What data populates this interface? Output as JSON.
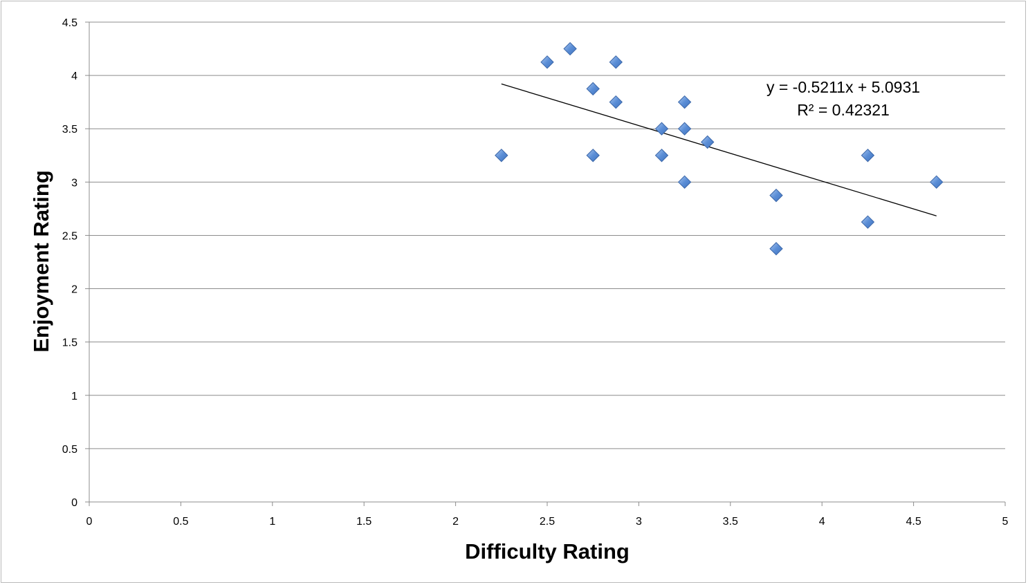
{
  "chart_data": {
    "type": "scatter",
    "title": "",
    "xlabel": "Difficulty Rating",
    "ylabel": "Enjoyment Rating",
    "xlim": [
      0,
      5
    ],
    "ylim": [
      0,
      4.5
    ],
    "xticks": [
      "0",
      "0.5",
      "1",
      "1.5",
      "2",
      "2.5",
      "3",
      "3.5",
      "4",
      "4.5",
      "5"
    ],
    "yticks": [
      "0",
      "0.5",
      "1",
      "1.5",
      "2",
      "2.5",
      "3",
      "3.5",
      "4",
      "4.5"
    ],
    "grid": "horizontal",
    "legend": "none",
    "marker": "diamond",
    "marker_color": "#5b8ed6",
    "series": [
      {
        "x": [
          2.25,
          2.5,
          2.625,
          2.75,
          2.75,
          2.875,
          2.875,
          3.125,
          3.125,
          3.25,
          3.25,
          3.25,
          3.375,
          3.75,
          3.75,
          4.25,
          4.25,
          4.625
        ],
        "y": [
          3.25,
          4.125,
          4.25,
          3.875,
          3.25,
          4.125,
          3.75,
          3.5,
          3.25,
          3.75,
          3.5,
          3.0,
          3.375,
          2.875,
          2.375,
          3.25,
          2.625,
          3.0
        ]
      }
    ],
    "trendline": {
      "type": "linear",
      "slope": -0.5211,
      "intercept": 5.0931,
      "x_range": [
        2.25,
        4.625
      ],
      "equation_label": "y = -0.5211x + 5.0931",
      "r2_label": "R² = 0.42321"
    }
  }
}
